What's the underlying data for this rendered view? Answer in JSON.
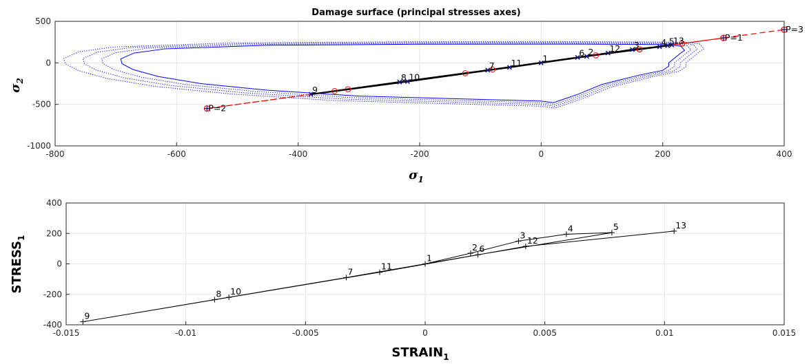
{
  "chart_data": [
    {
      "type": "line",
      "title": "Damage surface (principal stresses axes)",
      "xlabel": {
        "base": "σ",
        "sub": "1"
      },
      "ylabel": {
        "base": "σ",
        "sub": "2"
      },
      "xlim": [
        -800,
        400
      ],
      "ylim": [
        -1000,
        500
      ],
      "xticks": [
        -800,
        -600,
        -400,
        -200,
        0,
        200,
        400
      ],
      "yticks": [
        -1000,
        -500,
        0,
        500
      ],
      "grid": true,
      "colors": {
        "surface": "#0000ff",
        "load_path": "#000000",
        "load_markers": "#1a1a80",
        "prescribed": "#ff0000"
      },
      "damage_surface": {
        "solid": [
          [
            230,
            200
          ],
          [
            212,
            218
          ],
          [
            160,
            222
          ],
          [
            60,
            225
          ],
          [
            -30,
            226
          ],
          [
            -200,
            224
          ],
          [
            -450,
            212
          ],
          [
            -620,
            168
          ],
          [
            -670,
            118
          ],
          [
            -692,
            48
          ],
          [
            -690,
            -10
          ],
          [
            -672,
            -80
          ],
          [
            -630,
            -165
          ],
          [
            -560,
            -250
          ],
          [
            -450,
            -330
          ],
          [
            -300,
            -400
          ],
          [
            -150,
            -430
          ],
          [
            0,
            -460
          ],
          [
            20,
            -480
          ],
          [
            40,
            -430
          ],
          [
            60,
            -380
          ],
          [
            80,
            -320
          ],
          [
            100,
            -260
          ],
          [
            160,
            -150
          ],
          [
            200,
            -90
          ],
          [
            210,
            -40
          ],
          [
            210,
            0
          ],
          [
            220,
            60
          ],
          [
            230,
            120
          ],
          [
            236,
            150
          ],
          [
            230,
            200
          ]
        ],
        "dotted_scales": [
          1.045,
          1.09,
          1.135
        ],
        "dotted_style": "dotted"
      },
      "load_points": {
        "labels": [
          "1",
          "2",
          "3",
          "4",
          "5",
          "6",
          "7",
          "8",
          "9",
          "10",
          "11",
          "12",
          "13"
        ],
        "x": [
          0,
          75,
          150,
          195,
          208,
          60,
          -88,
          -233,
          -379,
          -220,
          -52,
          110,
          215
        ],
        "y": [
          0,
          78,
          160,
          195,
          207,
          65,
          -88,
          -231,
          -379,
          -225,
          -55,
          118,
          215
        ]
      },
      "prescribed_path": {
        "labels": [
          "P=1",
          "P=2",
          "P=3"
        ],
        "x": [
          300,
          -550,
          400
        ],
        "y": [
          300,
          -550,
          400
        ],
        "circles_x": [
          90,
          162,
          232,
          -125,
          -318,
          -340,
          -80,
          162,
          232
        ],
        "circles_y": [
          90,
          162,
          232,
          -125,
          -318,
          -340,
          -80,
          162,
          232
        ]
      }
    },
    {
      "type": "line",
      "title": "",
      "xlabel": {
        "base": "STRAIN",
        "sub": "1"
      },
      "ylabel": {
        "base": "STRESS",
        "sub": "1"
      },
      "xlim": [
        -0.015,
        0.015
      ],
      "ylim": [
        -400,
        400
      ],
      "xticks": [
        -0.015,
        -0.01,
        -0.005,
        0,
        0.005,
        0.01,
        0.015
      ],
      "xtick_labels": [
        "-0.015",
        "-0.01",
        "-0.005",
        "0",
        "0.005",
        "0.01",
        "0.015"
      ],
      "yticks": [
        -400,
        -200,
        0,
        200,
        400
      ],
      "grid": true,
      "points": {
        "labels": [
          "1",
          "2",
          "3",
          "4",
          "5",
          "6",
          "7",
          "8",
          "9",
          "10",
          "11",
          "12",
          "13"
        ],
        "x": [
          0,
          0.0019,
          0.0039,
          0.0059,
          0.0078,
          0.0022,
          -0.0033,
          -0.0088,
          -0.0143,
          -0.0082,
          -0.0019,
          0.0042,
          0.0104
        ],
        "y": [
          0,
          70,
          150,
          195,
          205,
          60,
          -90,
          -235,
          -380,
          -220,
          -55,
          115,
          215
        ]
      }
    }
  ]
}
